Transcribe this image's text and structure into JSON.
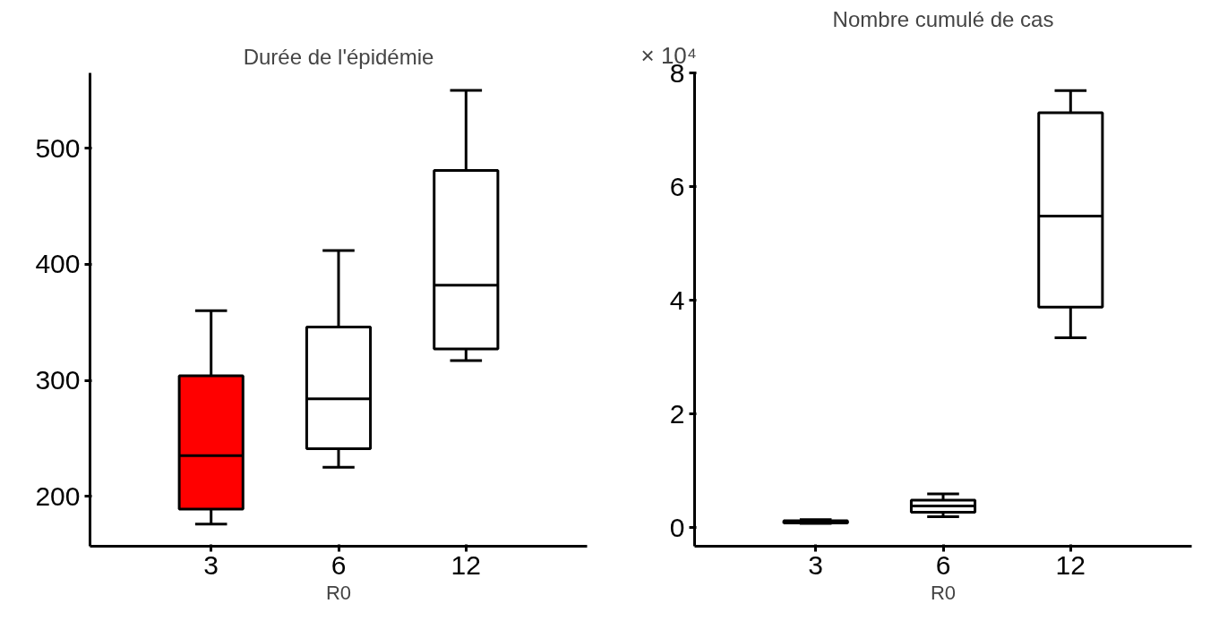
{
  "chart_data": [
    {
      "type": "box",
      "title": "Durée de l'épidémie",
      "xlabel": "R0",
      "categories": [
        "3",
        "6",
        "12"
      ],
      "colors": [
        "#ff0000",
        "#ffffff",
        "#ffffff"
      ],
      "boxes": [
        {
          "low": 176,
          "q1": 189,
          "median": 235,
          "q3": 304,
          "high": 360
        },
        {
          "low": 225,
          "q1": 241,
          "median": 284,
          "q3": 346,
          "high": 412
        },
        {
          "low": 317,
          "q1": 327,
          "median": 382,
          "q3": 481,
          "high": 550
        }
      ],
      "ylim": [
        157,
        565
      ],
      "yticks": [
        200,
        300,
        400,
        500
      ],
      "grid": false
    },
    {
      "type": "box",
      "title": "Nombre cumulé de cas",
      "xlabel": "R0",
      "categories": [
        "3",
        "6",
        "12"
      ],
      "colors": [
        "#ffffff",
        "#ffffff",
        "#ffffff"
      ],
      "boxes": [
        {
          "low": 0.07,
          "q1": 0.08,
          "median": 0.1,
          "q3": 0.12,
          "high": 0.14
        },
        {
          "low": 0.19,
          "q1": 0.27,
          "median": 0.38,
          "q3": 0.48,
          "high": 0.59
        },
        {
          "low": 3.34,
          "q1": 3.88,
          "median": 5.48,
          "q3": 7.3,
          "high": 7.69
        }
      ],
      "ylim": [
        -0.33,
        8
      ],
      "yticks": [
        0,
        2,
        4,
        6,
        8
      ],
      "annotations": [
        "× 10⁴"
      ],
      "grid": false
    }
  ]
}
